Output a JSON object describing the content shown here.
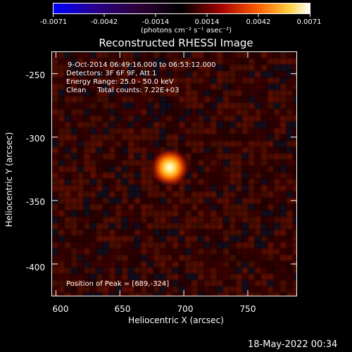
{
  "colorbar": {
    "tick_labels": [
      "-0.0071",
      "-0.0042",
      "-0.0014",
      "0.0014",
      "0.0042",
      "0.0071"
    ],
    "units_label": "(photons cm⁻² s⁻¹ asec⁻²)",
    "min": -0.0071,
    "max": 0.0071
  },
  "chart_data": {
    "type": "heatmap",
    "title": "Reconstructed RHESSI Image",
    "xlabel": "Heliocentric X (arcsec)",
    "ylabel": "Heliocentric Y (arcsec)",
    "xlim": [
      597,
      788
    ],
    "ylim": [
      -425,
      -233
    ],
    "x_ticks": [
      600,
      650,
      700,
      750
    ],
    "y_ticks": [
      -250,
      -300,
      -350,
      -400
    ],
    "peak": {
      "x": 689,
      "y": -324
    },
    "annotations": {
      "time_range": "9-Oct-2014 06:49:16.000 to 06:53:12.000",
      "detectors": "Detectors: 3F 6F 9F, Att 1",
      "energy_range": "Energy Range: 25.0 - 50.0 keV",
      "method_and_counts": "Clean     Total counts: 7.22E+03",
      "peak_position": "Position of Peak = [689,-324]"
    }
  },
  "footer_timestamp": "18-May-2022 00:34"
}
